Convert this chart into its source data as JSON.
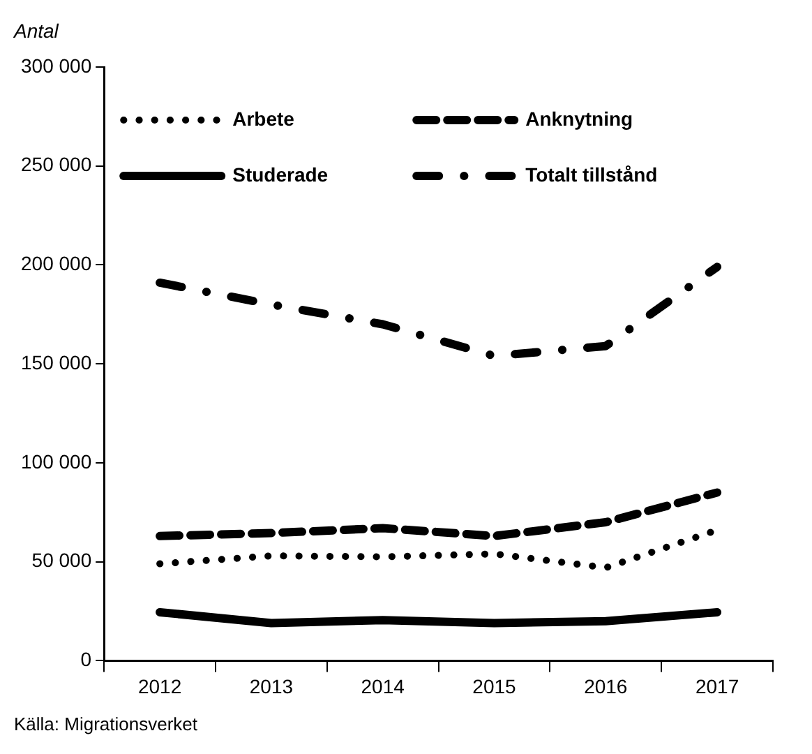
{
  "chart_data": {
    "type": "line",
    "ylabel": "Antal",
    "categories": [
      "2012",
      "2013",
      "2014",
      "2015",
      "2016",
      "2017"
    ],
    "series": [
      {
        "name": "Arbete",
        "color": "#000000",
        "line_style": "dotted",
        "values": [
          49000,
          53000,
          52500,
          54000,
          47000,
          66000
        ]
      },
      {
        "name": "Anknytning",
        "color": "#000000",
        "line_style": "dashed",
        "values": [
          63000,
          64500,
          67000,
          63000,
          70000,
          85000
        ]
      },
      {
        "name": "Studerade",
        "color": "#000000",
        "line_style": "solid",
        "values": [
          24500,
          19000,
          20500,
          19000,
          20000,
          24500
        ]
      },
      {
        "name": "Totalt tillstånd",
        "color": "#000000",
        "line_style": "dashdot",
        "values": [
          191000,
          180000,
          170000,
          154000,
          159000,
          199000
        ]
      }
    ],
    "ylim": [
      0,
      300000
    ],
    "yticks": [
      {
        "value": 0,
        "label": "0"
      },
      {
        "value": 50000,
        "label": "50 000"
      },
      {
        "value": 100000,
        "label": "100 000"
      },
      {
        "value": 150000,
        "label": "150 000"
      },
      {
        "value": 200000,
        "label": "200 000"
      },
      {
        "value": 250000,
        "label": "250 000"
      },
      {
        "value": 300000,
        "label": "300 000"
      }
    ],
    "grid": false,
    "legend": "top",
    "marker": "none",
    "annotations": [
      "Källa: Migrationsverket"
    ]
  }
}
